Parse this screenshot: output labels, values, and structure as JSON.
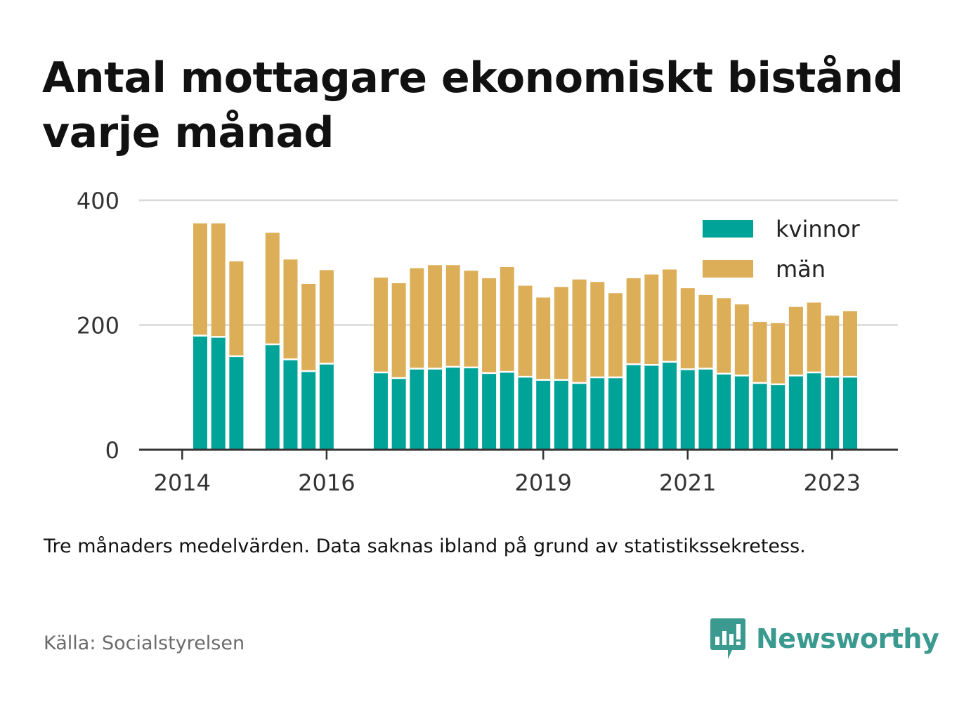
{
  "title": "Antal mottagare ekonomiskt bistånd varje månad",
  "note": "Tre månaders medelvärden. Data saknas ibland på grund av statistikssekretess.",
  "source": "Källa: Socialstyrelsen",
  "brand": {
    "name": "Newsworthy",
    "icon": "newsworthy-logo-icon",
    "color": "#3a9a90"
  },
  "colors": {
    "kvinnor": "#00a398",
    "man": "#ddae58",
    "grid": "#d9d9d9",
    "axis": "#333333"
  },
  "chart_data": {
    "type": "bar",
    "stacked": true,
    "title": "Antal mottagare ekonomiskt bistånd varje månad",
    "xlabel": "",
    "ylabel": "",
    "ylim": [
      0,
      400
    ],
    "yticks": [
      0,
      200,
      400
    ],
    "xtick_labels": [
      "2014",
      "2016",
      "2019",
      "2021",
      "2023"
    ],
    "grid": true,
    "legend_position": "top-right",
    "x": [
      "2014-04",
      "2014-07",
      "2014-10",
      "2015-01",
      "2015-04",
      "2015-07",
      "2015-10",
      "2016-01",
      "2016-04",
      "2016-07",
      "2016-10",
      "2017-01",
      "2017-04",
      "2017-07",
      "2017-10",
      "2018-01",
      "2018-04",
      "2018-07",
      "2018-10",
      "2019-01",
      "2019-04",
      "2019-07",
      "2019-10",
      "2020-01",
      "2020-04",
      "2020-07",
      "2020-10",
      "2021-01",
      "2021-04",
      "2021-07",
      "2021-10",
      "2022-01",
      "2022-04",
      "2022-07",
      "2022-10",
      "2023-01",
      "2023-04"
    ],
    "series": [
      {
        "name": "kvinnor",
        "color": "#00a398",
        "values": [
          183,
          181,
          150,
          null,
          169,
          145,
          126,
          138,
          null,
          null,
          124,
          115,
          130,
          130,
          133,
          132,
          123,
          125,
          117,
          112,
          112,
          107,
          116,
          116,
          137,
          136,
          141,
          129,
          130,
          122,
          119,
          107,
          105,
          119,
          124,
          117,
          117
        ]
      },
      {
        "name": "män",
        "color": "#ddae58",
        "values": [
          180,
          182,
          152,
          null,
          179,
          160,
          140,
          150,
          null,
          null,
          152,
          152,
          161,
          166,
          163,
          155,
          152,
          168,
          146,
          132,
          149,
          166,
          153,
          135,
          138,
          145,
          148,
          130,
          118,
          121,
          114,
          98,
          98,
          110,
          112,
          98,
          105
        ]
      }
    ]
  }
}
